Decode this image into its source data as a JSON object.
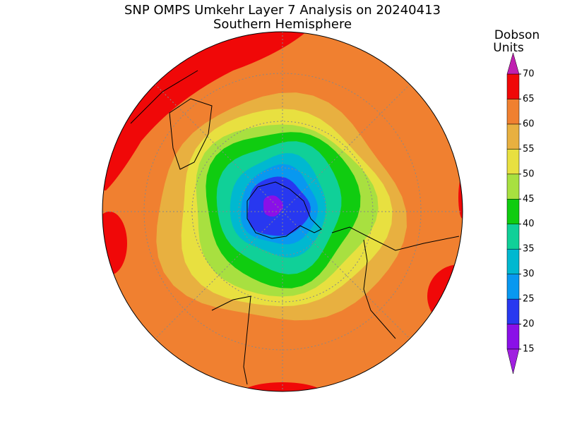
{
  "chart_data": {
    "type": "polar-map",
    "title": "SNP OMPS Umkehr Layer 7 Analysis on 20240413",
    "subtitle": "Southern Hemisphere",
    "colorbar": {
      "label": [
        "Dobson",
        "Units"
      ],
      "levels": [
        15,
        20,
        25,
        30,
        35,
        40,
        45,
        50,
        55,
        60,
        65,
        70
      ],
      "colors": [
        "#8a10e8",
        "#2838f0",
        "#0898f0",
        "#00b8d0",
        "#10d098",
        "#10cc10",
        "#a8e040",
        "#e8e040",
        "#e8b040",
        "#f08030",
        "#f00808"
      ],
      "under_color": "#a020e0",
      "over_color": "#c020b0"
    }
  }
}
